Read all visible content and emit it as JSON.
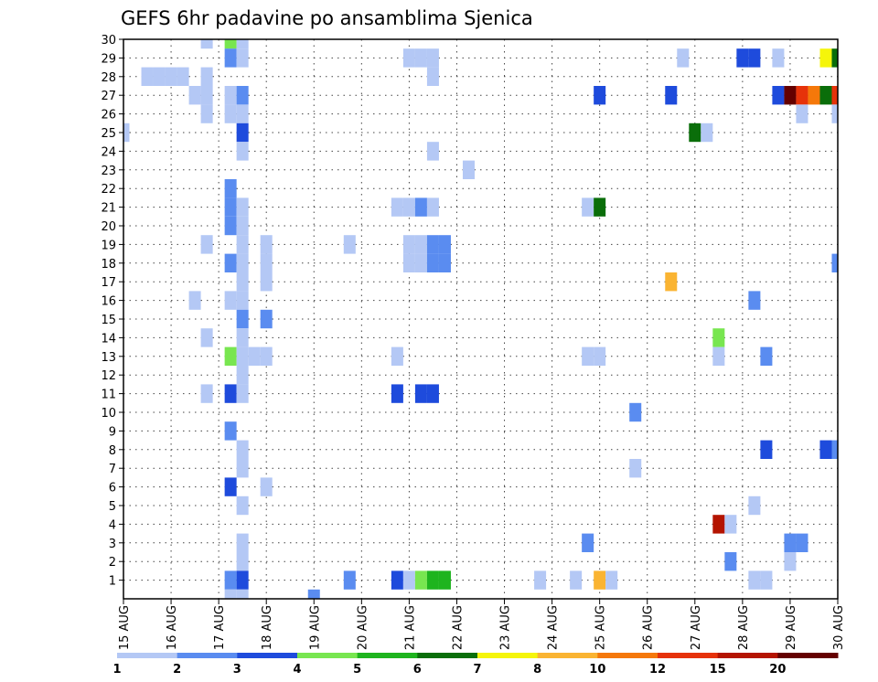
{
  "chart_data": {
    "type": "heatmap",
    "title": "GEFS 6hr padavine po ansamblima Sjenica",
    "xlabel": "",
    "ylabel": "",
    "x_ticks": [
      "15 AUG",
      "16 AUG",
      "17 AUG",
      "18 AUG",
      "19 AUG",
      "20 AUG",
      "21 AUG",
      "22 AUG",
      "23 AUG",
      "24 AUG",
      "25 AUG",
      "26 AUG",
      "27 AUG",
      "28 AUG",
      "29 AUG",
      "30 AUG"
    ],
    "x_range_days": [
      0,
      15
    ],
    "y_ticks": [
      1,
      2,
      3,
      4,
      5,
      6,
      7,
      8,
      9,
      10,
      11,
      12,
      13,
      14,
      15,
      16,
      17,
      18,
      19,
      20,
      21,
      22,
      23,
      24,
      25,
      26,
      27,
      28,
      29,
      30
    ],
    "y_range": [
      0,
      30
    ],
    "grid": true,
    "colorbar": {
      "labels": [
        "1",
        "2",
        "3",
        "4",
        "5",
        "6",
        "7",
        "8",
        "10",
        "12",
        "15",
        "20"
      ],
      "colors": [
        "#b4c8f5",
        "#5a8cf0",
        "#1e4bdc",
        "#78e650",
        "#1eb41e",
        "#0a6e0a",
        "#f5f50a",
        "#fab432",
        "#f5780a",
        "#e6320a",
        "#b41400",
        "#640000"
      ]
    },
    "cells": [
      {
        "m": 30,
        "t": [
          1.75
        ],
        "b": 0
      },
      {
        "m": 30,
        "t": [
          2.25
        ],
        "b": 3
      },
      {
        "m": 30,
        "t": [
          2.5
        ],
        "b": 0
      },
      {
        "m": 29,
        "t": [
          2.25
        ],
        "b": 1
      },
      {
        "m": 29,
        "t": [
          2.5
        ],
        "b": 0
      },
      {
        "m": 29,
        "t": [
          6.0,
          6.25,
          6.5
        ],
        "b": 0
      },
      {
        "m": 29,
        "t": [
          11.75
        ],
        "b": 0
      },
      {
        "m": 29,
        "t": [
          13.0,
          13.25
        ],
        "b": 2
      },
      {
        "m": 29,
        "t": [
          13.75
        ],
        "b": 0
      },
      {
        "m": 29,
        "t": [
          14.75
        ],
        "b": 6
      },
      {
        "m": 29,
        "t": [
          15.0
        ],
        "b": 5
      },
      {
        "m": 28,
        "t": [
          0.5,
          0.75,
          1.0,
          1.25
        ],
        "b": 0
      },
      {
        "m": 28,
        "t": [
          1.75
        ],
        "b": 0
      },
      {
        "m": 28,
        "t": [
          6.5
        ],
        "b": 0
      },
      {
        "m": 27,
        "t": [
          1.5,
          1.75
        ],
        "b": 0
      },
      {
        "m": 27,
        "t": [
          2.25
        ],
        "b": 0
      },
      {
        "m": 27,
        "t": [
          2.5
        ],
        "b": 1
      },
      {
        "m": 27,
        "t": [
          10.0
        ],
        "b": 2
      },
      {
        "m": 27,
        "t": [
          11.5
        ],
        "b": 2
      },
      {
        "m": 27,
        "t": [
          13.75
        ],
        "b": 2
      },
      {
        "m": 27,
        "t": [
          14.0
        ],
        "b": 11
      },
      {
        "m": 27,
        "t": [
          14.25
        ],
        "b": 9
      },
      {
        "m": 27,
        "t": [
          14.5
        ],
        "b": 8
      },
      {
        "m": 27,
        "t": [
          14.75
        ],
        "b": 5
      },
      {
        "m": 27,
        "t": [
          15.0
        ],
        "b": 9
      },
      {
        "m": 26,
        "t": [
          1.75
        ],
        "b": 0
      },
      {
        "m": 26,
        "t": [
          2.25,
          2.5
        ],
        "b": 0
      },
      {
        "m": 26,
        "t": [
          14.25
        ],
        "b": 0
      },
      {
        "m": 26,
        "t": [
          15.0
        ],
        "b": 0
      },
      {
        "m": 25,
        "t": [
          0.0
        ],
        "b": 0
      },
      {
        "m": 25,
        "t": [
          2.5
        ],
        "b": 2
      },
      {
        "m": 25,
        "t": [
          12.0
        ],
        "b": 5
      },
      {
        "m": 25,
        "t": [
          12.25
        ],
        "b": 0
      },
      {
        "m": 24,
        "t": [
          2.5
        ],
        "b": 0
      },
      {
        "m": 24,
        "t": [
          6.5
        ],
        "b": 0
      },
      {
        "m": 23,
        "t": [
          7.25
        ],
        "b": 0
      },
      {
        "m": 22,
        "t": [
          2.25
        ],
        "b": 1
      },
      {
        "m": 21,
        "t": [
          2.25
        ],
        "b": 1
      },
      {
        "m": 21,
        "t": [
          2.5
        ],
        "b": 0
      },
      {
        "m": 21,
        "t": [
          5.75,
          6.0
        ],
        "b": 0
      },
      {
        "m": 21,
        "t": [
          6.25
        ],
        "b": 1
      },
      {
        "m": 21,
        "t": [
          6.5
        ],
        "b": 0
      },
      {
        "m": 21,
        "t": [
          9.75
        ],
        "b": 0
      },
      {
        "m": 21,
        "t": [
          10.0
        ],
        "b": 5
      },
      {
        "m": 20,
        "t": [
          2.25
        ],
        "b": 1
      },
      {
        "m": 20,
        "t": [
          2.5
        ],
        "b": 0
      },
      {
        "m": 19,
        "t": [
          1.75
        ],
        "b": 0
      },
      {
        "m": 19,
        "t": [
          2.5
        ],
        "b": 0
      },
      {
        "m": 19,
        "t": [
          3.0
        ],
        "b": 0
      },
      {
        "m": 19,
        "t": [
          4.75
        ],
        "b": 0
      },
      {
        "m": 19,
        "t": [
          6.0,
          6.25
        ],
        "b": 0
      },
      {
        "m": 19,
        "t": [
          6.5,
          6.75
        ],
        "b": 1
      },
      {
        "m": 18,
        "t": [
          2.25
        ],
        "b": 1
      },
      {
        "m": 18,
        "t": [
          2.5
        ],
        "b": 0
      },
      {
        "m": 18,
        "t": [
          3.0
        ],
        "b": 0
      },
      {
        "m": 18,
        "t": [
          6.0,
          6.25
        ],
        "b": 0
      },
      {
        "m": 18,
        "t": [
          6.5,
          6.75
        ],
        "b": 1
      },
      {
        "m": 18,
        "t": [
          15.0
        ],
        "b": 1
      },
      {
        "m": 17,
        "t": [
          2.5
        ],
        "b": 0
      },
      {
        "m": 17,
        "t": [
          3.0
        ],
        "b": 0
      },
      {
        "m": 17,
        "t": [
          11.5
        ],
        "b": 7
      },
      {
        "m": 16,
        "t": [
          1.5
        ],
        "b": 0
      },
      {
        "m": 16,
        "t": [
          2.25,
          2.5
        ],
        "b": 0
      },
      {
        "m": 16,
        "t": [
          13.25
        ],
        "b": 1
      },
      {
        "m": 15,
        "t": [
          2.5
        ],
        "b": 1
      },
      {
        "m": 15,
        "t": [
          3.0
        ],
        "b": 1
      },
      {
        "m": 14,
        "t": [
          1.75
        ],
        "b": 0
      },
      {
        "m": 14,
        "t": [
          2.5
        ],
        "b": 0
      },
      {
        "m": 14,
        "t": [
          12.5
        ],
        "b": 3
      },
      {
        "m": 13,
        "t": [
          2.25
        ],
        "b": 3
      },
      {
        "m": 13,
        "t": [
          2.5,
          2.75
        ],
        "b": 0
      },
      {
        "m": 13,
        "t": [
          3.0
        ],
        "b": 0
      },
      {
        "m": 13,
        "t": [
          5.75
        ],
        "b": 0
      },
      {
        "m": 13,
        "t": [
          9.75,
          10.0
        ],
        "b": 0
      },
      {
        "m": 13,
        "t": [
          12.5
        ],
        "b": 0
      },
      {
        "m": 13,
        "t": [
          13.5
        ],
        "b": 1
      },
      {
        "m": 12,
        "t": [
          2.5
        ],
        "b": 0
      },
      {
        "m": 11,
        "t": [
          1.75
        ],
        "b": 0
      },
      {
        "m": 11,
        "t": [
          2.25
        ],
        "b": 2
      },
      {
        "m": 11,
        "t": [
          2.5
        ],
        "b": 0
      },
      {
        "m": 11,
        "t": [
          5.75
        ],
        "b": 2
      },
      {
        "m": 11,
        "t": [
          6.25,
          6.5
        ],
        "b": 2
      },
      {
        "m": 10,
        "t": [
          10.75
        ],
        "b": 1
      },
      {
        "m": 9,
        "t": [
          2.25
        ],
        "b": 1
      },
      {
        "m": 8,
        "t": [
          2.5
        ],
        "b": 0
      },
      {
        "m": 8,
        "t": [
          13.5
        ],
        "b": 2
      },
      {
        "m": 8,
        "t": [
          14.75
        ],
        "b": 2
      },
      {
        "m": 8,
        "t": [
          15.0
        ],
        "b": 1
      },
      {
        "m": 7,
        "t": [
          2.5
        ],
        "b": 0
      },
      {
        "m": 7,
        "t": [
          10.75
        ],
        "b": 0
      },
      {
        "m": 6,
        "t": [
          2.25
        ],
        "b": 2
      },
      {
        "m": 6,
        "t": [
          3.0
        ],
        "b": 0
      },
      {
        "m": 5,
        "t": [
          2.5
        ],
        "b": 0
      },
      {
        "m": 5,
        "t": [
          13.25
        ],
        "b": 0
      },
      {
        "m": 4,
        "t": [
          12.5
        ],
        "b": 10
      },
      {
        "m": 4,
        "t": [
          12.75
        ],
        "b": 0
      },
      {
        "m": 3,
        "t": [
          2.5
        ],
        "b": 0
      },
      {
        "m": 3,
        "t": [
          9.75
        ],
        "b": 1
      },
      {
        "m": 3,
        "t": [
          14.0,
          14.25
        ],
        "b": 1
      },
      {
        "m": 2,
        "t": [
          2.5
        ],
        "b": 0
      },
      {
        "m": 2,
        "t": [
          12.75
        ],
        "b": 1
      },
      {
        "m": 2,
        "t": [
          14.0
        ],
        "b": 0
      },
      {
        "m": 1,
        "t": [
          2.25
        ],
        "b": 1
      },
      {
        "m": 1,
        "t": [
          2.5
        ],
        "b": 2
      },
      {
        "m": 1,
        "t": [
          4.75
        ],
        "b": 1
      },
      {
        "m": 1,
        "t": [
          5.75
        ],
        "b": 2
      },
      {
        "m": 1,
        "t": [
          6.0
        ],
        "b": 0
      },
      {
        "m": 1,
        "t": [
          6.25
        ],
        "b": 3
      },
      {
        "m": 1,
        "t": [
          6.5,
          6.75
        ],
        "b": 4
      },
      {
        "m": 1,
        "t": [
          8.75
        ],
        "b": 0
      },
      {
        "m": 1,
        "t": [
          9.5
        ],
        "b": 0
      },
      {
        "m": 1,
        "t": [
          10.0
        ],
        "b": 7
      },
      {
        "m": 1,
        "t": [
          10.25
        ],
        "b": 0
      },
      {
        "m": 1,
        "t": [
          13.25,
          13.5
        ],
        "b": 0
      },
      {
        "m": 0,
        "t": [
          2.25,
          2.5
        ],
        "b": 0
      },
      {
        "m": 0,
        "t": [
          4.0
        ],
        "b": 1
      }
    ]
  }
}
